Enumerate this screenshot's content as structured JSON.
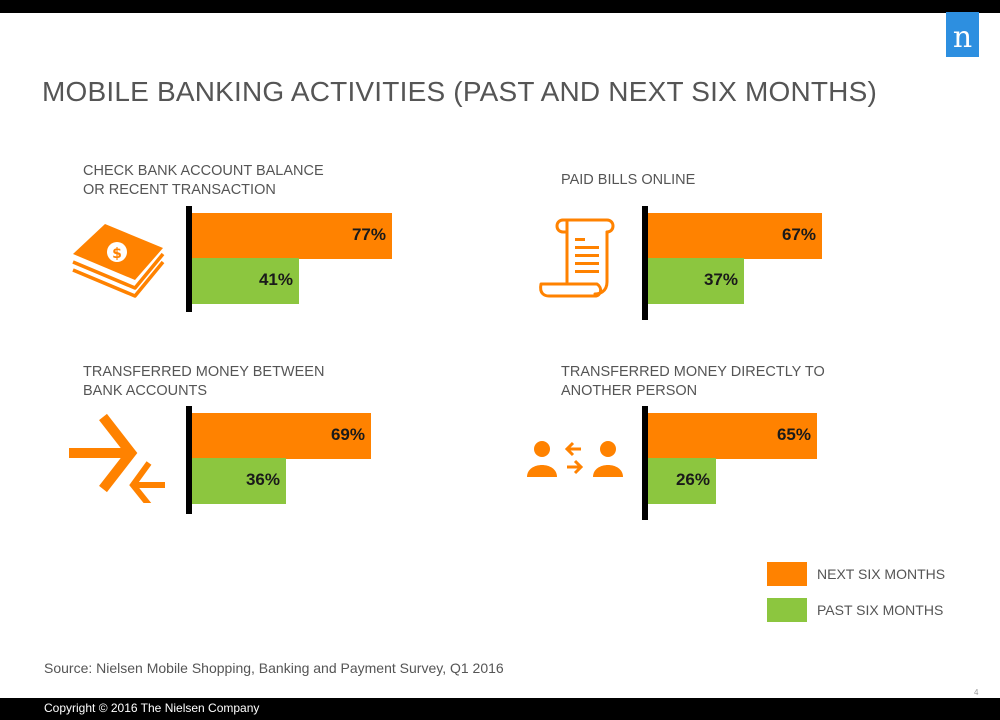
{
  "title": "MOBILE BANKING ACTIVITIES (PAST AND NEXT SIX MONTHS)",
  "logo_letter": "n",
  "slide_number": "4",
  "source": "Source:  Nielsen Mobile Shopping, Banking and Payment Survey, Q1 2016",
  "copyright": "Copyright © 2016 The Nielsen Company",
  "colors": {
    "next": "#ff8200",
    "past": "#8cc63f",
    "icon": "#ff8200",
    "logo": "#2d8fe0"
  },
  "legend": [
    {
      "label": "NEXT SIX MONTHS",
      "color": "#ff8200"
    },
    {
      "label": "PAST SIX MONTHS",
      "color": "#8cc63f"
    }
  ],
  "chart_data": {
    "type": "bar",
    "orientation": "horizontal",
    "title": "MOBILE BANKING ACTIVITIES (PAST AND NEXT SIX MONTHS)",
    "unit": "%",
    "xlim": [
      0,
      100
    ],
    "grid": false,
    "legend_position": "bottom-right",
    "series_names": [
      "NEXT SIX MONTHS",
      "PAST SIX MONTHS"
    ],
    "panels": [
      {
        "label": [
          "CHECK BANK ACCOUNT BALANCE",
          "OR RECENT TRANSACTION"
        ],
        "icon": "money-stack-icon",
        "next": 77,
        "past": 41,
        "next_label": "77%",
        "past_label": "41%"
      },
      {
        "label": [
          "PAID BILLS ONLINE"
        ],
        "icon": "bill-receipt-icon",
        "next": 67,
        "past": 37,
        "next_label": "67%",
        "past_label": "37%"
      },
      {
        "label": [
          "TRANSFERRED MONEY BETWEEN",
          "BANK ACCOUNTS"
        ],
        "icon": "transfer-arrows-icon",
        "next": 69,
        "past": 36,
        "next_label": "69%",
        "past_label": "36%"
      },
      {
        "label": [
          "TRANSFERRED MONEY DIRECTLY TO",
          "ANOTHER PERSON"
        ],
        "icon": "person-to-person-icon",
        "next": 65,
        "past": 26,
        "next_label": "65%",
        "past_label": "26%"
      }
    ]
  }
}
